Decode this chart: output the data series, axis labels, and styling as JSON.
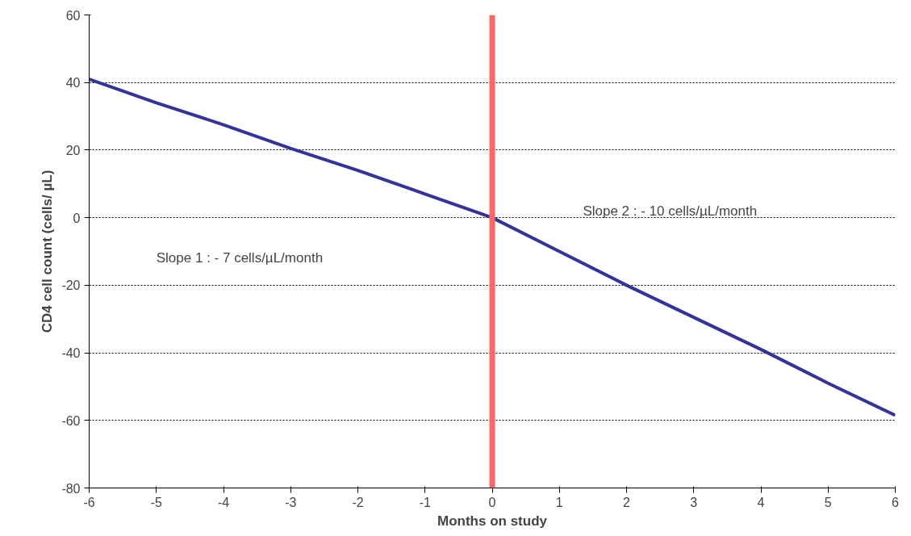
{
  "chart_data": {
    "type": "line",
    "xlabel": "Months on study",
    "ylabel": "CD4 cell count (cells/ µL)",
    "x": [
      -6,
      -5,
      -4,
      -3,
      -2,
      -1,
      0,
      1,
      2,
      3,
      4,
      5,
      6
    ],
    "series": [
      {
        "color": "#333399",
        "values": [
          41,
          34,
          27.5,
          20.5,
          14,
          7,
          0,
          -10,
          -20,
          -29.5,
          -39,
          -49,
          -58.5
        ]
      }
    ],
    "xlim": [
      -6,
      6
    ],
    "xticks": [
      -6,
      -5,
      -4,
      -3,
      -2,
      -1,
      0,
      1,
      2,
      3,
      4,
      5,
      6
    ],
    "ylim": [
      -80,
      60
    ],
    "yticks": [
      -80,
      -60,
      -40,
      -20,
      0,
      20,
      40,
      60
    ],
    "grid": "y",
    "marker": "none",
    "line_style": "solid",
    "ref_lines": [
      {
        "axis": "x",
        "value": 0,
        "color": "#ff6666"
      }
    ],
    "annotations": [
      "Slope 1 : - 7 cells/µL/month",
      "Slope 2 : - 10 cells/µL/month"
    ]
  }
}
